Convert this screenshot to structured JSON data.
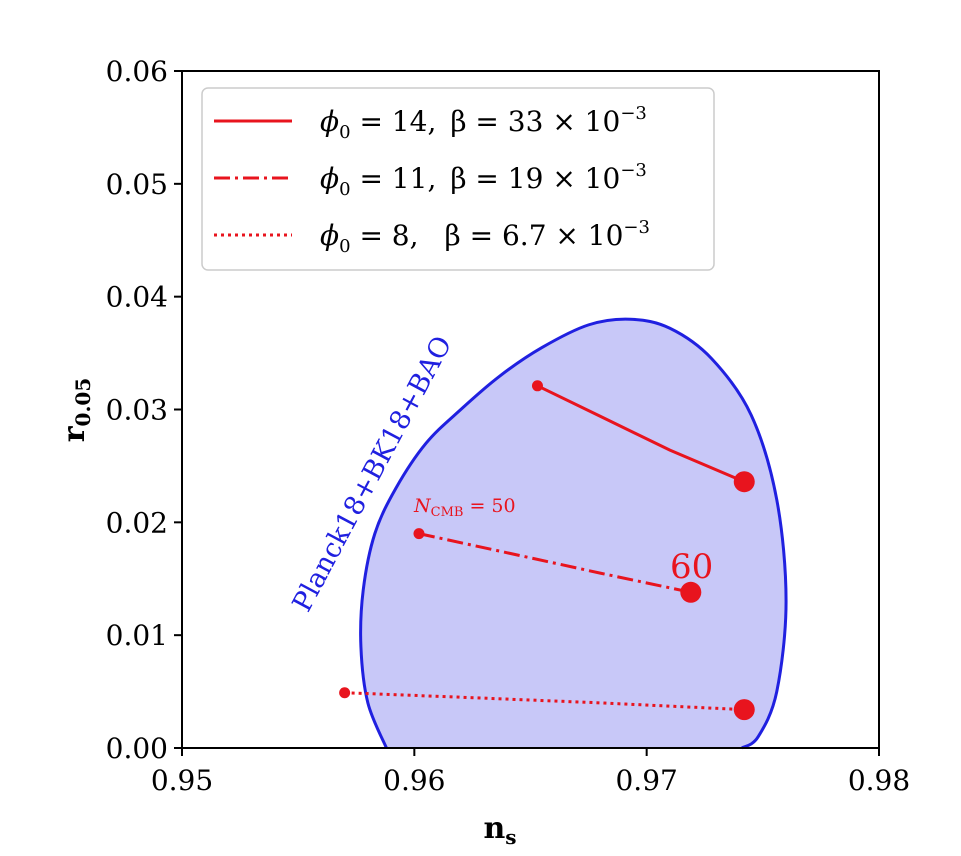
{
  "chart_data": {
    "type": "line",
    "xlabel": "n",
    "xlabel_sub": "s",
    "ylabel": "r",
    "ylabel_sub": "0.05",
    "xlim": [
      0.95,
      0.98
    ],
    "ylim": [
      0.0,
      0.06
    ],
    "xticks": [
      0.95,
      0.96,
      0.97,
      0.98
    ],
    "xtick_labels": [
      "0.95",
      "0.96",
      "0.97",
      "0.98"
    ],
    "yticks": [
      0.0,
      0.01,
      0.02,
      0.03,
      0.04,
      0.05,
      0.06
    ],
    "ytick_labels": [
      "0.00",
      "0.01",
      "0.02",
      "0.03",
      "0.04",
      "0.05",
      "0.06"
    ],
    "grid": false,
    "legend_position": "top-left",
    "region": {
      "label": "Planck18+BK18+BAO",
      "color": "#2020e0",
      "fill": "#c8c8f8",
      "boundary": [
        [
          0.9588,
          0.0
        ],
        [
          0.958,
          0.004
        ],
        [
          0.9577,
          0.009
        ],
        [
          0.9578,
          0.014
        ],
        [
          0.9583,
          0.019
        ],
        [
          0.9592,
          0.023
        ],
        [
          0.9605,
          0.027
        ],
        [
          0.962,
          0.03
        ],
        [
          0.9637,
          0.033
        ],
        [
          0.9655,
          0.0355
        ],
        [
          0.9675,
          0.0375
        ],
        [
          0.9693,
          0.038
        ],
        [
          0.971,
          0.0372
        ],
        [
          0.9728,
          0.0345
        ],
        [
          0.9745,
          0.0295
        ],
        [
          0.9756,
          0.022
        ],
        [
          0.976,
          0.013
        ],
        [
          0.9756,
          0.005
        ],
        [
          0.9748,
          0.001
        ],
        [
          0.9741,
          0.0
        ]
      ]
    },
    "series": [
      {
        "name": "φ0 = 14,  β = 33 × 10⁻³",
        "style": "solid",
        "color": "#e8141e",
        "points": [
          [
            0.9653,
            0.0321
          ],
          [
            0.968,
            0.0294
          ],
          [
            0.971,
            0.0264
          ],
          [
            0.9742,
            0.0236
          ]
        ]
      },
      {
        "name": "φ0 = 11,  β = 19 × 10⁻³",
        "style": "dashdot",
        "color": "#e8141e",
        "points": [
          [
            0.9602,
            0.019
          ],
          [
            0.964,
            0.0173
          ],
          [
            0.968,
            0.0155
          ],
          [
            0.9719,
            0.0138
          ]
        ]
      },
      {
        "name": "φ0 = 8,   β = 6.7 × 10⁻³",
        "style": "dotted",
        "color": "#e8141e",
        "points": [
          [
            0.957,
            0.0049
          ],
          [
            0.962,
            0.0045
          ],
          [
            0.968,
            0.004
          ],
          [
            0.9742,
            0.0034
          ]
        ]
      }
    ],
    "legend": [
      {
        "phi": "ϕ",
        "phi_sub": "0",
        "eq1": " = 14,",
        "beta": "β = 33 × 10",
        "exp": "−3"
      },
      {
        "phi": "ϕ",
        "phi_sub": "0",
        "eq1": " = 11,",
        "beta": "β = 19 × 10",
        "exp": "−3"
      },
      {
        "phi": "ϕ",
        "phi_sub": "0",
        "eq1": " = 8,",
        "beta": "β = 6.7 × 10",
        "exp": "−3"
      }
    ],
    "annotations": {
      "n50_main": "N",
      "n50_sub": "CMB",
      "n50_rest": " = 50",
      "n60": "60"
    }
  }
}
